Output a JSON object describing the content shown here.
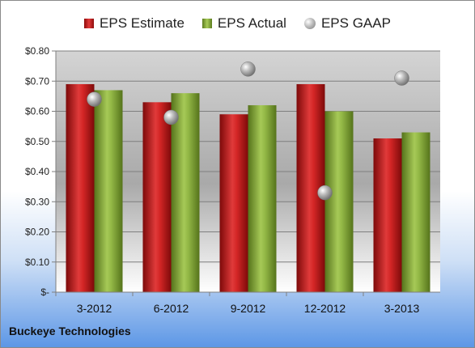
{
  "legend": {
    "estimate": "EPS Estimate",
    "actual": "EPS Actual",
    "gaap": "EPS GAAP"
  },
  "company": "Buckeye Technologies",
  "colors": {
    "estimate": "#c81e1e",
    "actual": "#8db03c",
    "gaap": "#a8a8a8"
  },
  "chart_data": {
    "type": "bar",
    "categories": [
      "3-2012",
      "6-2012",
      "9-2012",
      "12-2012",
      "3-2013"
    ],
    "series": [
      {
        "name": "EPS Estimate",
        "values": [
          0.69,
          0.63,
          0.59,
          0.69,
          0.51
        ]
      },
      {
        "name": "EPS Actual",
        "values": [
          0.67,
          0.66,
          0.62,
          0.6,
          0.53
        ]
      },
      {
        "name": "EPS GAAP",
        "values": [
          0.64,
          0.58,
          0.74,
          0.33,
          0.71
        ],
        "marker": "sphere"
      }
    ],
    "ylim": [
      0,
      0.8
    ],
    "yticks": [
      0,
      0.1,
      0.2,
      0.3,
      0.4,
      0.5,
      0.6,
      0.7,
      0.8
    ],
    "ytick_labels": [
      "$-",
      "$0.10",
      "$0.20",
      "$0.30",
      "$0.40",
      "$0.50",
      "$0.60",
      "$0.70",
      "$0.80"
    ],
    "grid": true,
    "legend_position": "top"
  }
}
